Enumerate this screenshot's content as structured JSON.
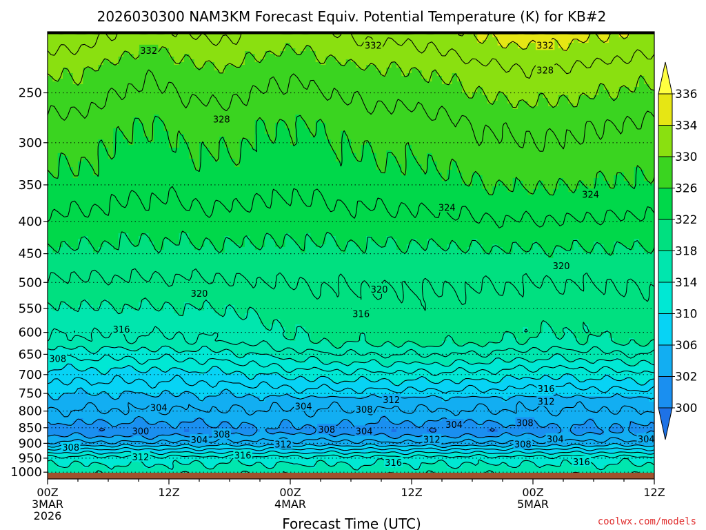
{
  "chart_data": {
    "type": "heatmap",
    "title": "2026030300 NAM3KM Forecast Equiv. Potential Temperature (K) for KB#2",
    "xlabel": "Forecast Time (UTC)",
    "ylabel": "",
    "x_ticks": [
      {
        "hour": 0,
        "lines": [
          "00Z",
          "3MAR",
          "2026"
        ]
      },
      {
        "hour": 12,
        "lines": [
          "12Z"
        ]
      },
      {
        "hour": 24,
        "lines": [
          "00Z",
          "4MAR"
        ]
      },
      {
        "hour": 36,
        "lines": [
          "12Z"
        ]
      },
      {
        "hour": 48,
        "lines": [
          "00Z",
          "5MAR"
        ]
      },
      {
        "hour": 60,
        "lines": [
          "12Z"
        ]
      }
    ],
    "xlim": [
      0,
      60
    ],
    "y_ticks": [
      250,
      300,
      350,
      400,
      450,
      500,
      550,
      600,
      650,
      700,
      750,
      800,
      850,
      900,
      950,
      1000
    ],
    "ylim": [
      200,
      1025
    ],
    "y_scale": "log",
    "y_inverted": true,
    "colorbar": {
      "levels": [
        300,
        302,
        306,
        310,
        314,
        318,
        322,
        326,
        330,
        334,
        336
      ],
      "labels": [
        "300",
        "302",
        "306",
        "310",
        "314",
        "318",
        "322",
        "326",
        "330",
        "334",
        "336"
      ],
      "colors": [
        "#1e72e6",
        "#1a8ff0",
        "#12aef2",
        "#07d3f5",
        "#00e8d4",
        "#00e6ae",
        "#00e080",
        "#00d84a",
        "#3ad420",
        "#8ae010",
        "#e6e614",
        "#ffff40"
      ]
    },
    "contour_labels": [
      {
        "text": "332",
        "hour": 10.0,
        "p": 214
      },
      {
        "text": "332",
        "hour": 32.2,
        "p": 210
      },
      {
        "text": "332",
        "hour": 49.2,
        "p": 210
      },
      {
        "text": "328",
        "hour": 49.2,
        "p": 230
      },
      {
        "text": "328",
        "hour": 17.2,
        "p": 275
      },
      {
        "text": "324",
        "hour": 39.5,
        "p": 380
      },
      {
        "text": "324",
        "hour": 53.7,
        "p": 362
      },
      {
        "text": "320",
        "hour": 15.0,
        "p": 520
      },
      {
        "text": "320",
        "hour": 32.8,
        "p": 512
      },
      {
        "text": "320",
        "hour": 50.8,
        "p": 470
      },
      {
        "text": "316",
        "hour": 7.3,
        "p": 593
      },
      {
        "text": "316",
        "hour": 31.0,
        "p": 560
      },
      {
        "text": "308",
        "hour": 1.0,
        "p": 660
      },
      {
        "text": "316",
        "hour": 49.3,
        "p": 737
      },
      {
        "text": "312",
        "hour": 49.3,
        "p": 772
      },
      {
        "text": "312",
        "hour": 34.0,
        "p": 767
      },
      {
        "text": "304",
        "hour": 11.0,
        "p": 790
      },
      {
        "text": "304",
        "hour": 25.3,
        "p": 786
      },
      {
        "text": "308",
        "hour": 31.3,
        "p": 795
      },
      {
        "text": "304",
        "hour": 40.2,
        "p": 840
      },
      {
        "text": "308",
        "hour": 47.2,
        "p": 835
      },
      {
        "text": "300",
        "hour": 9.2,
        "p": 860
      },
      {
        "text": "308",
        "hour": 17.2,
        "p": 870
      },
      {
        "text": "304",
        "hour": 15.0,
        "p": 888
      },
      {
        "text": "308",
        "hour": 27.6,
        "p": 855
      },
      {
        "text": "304",
        "hour": 31.3,
        "p": 860
      },
      {
        "text": "312",
        "hour": 38.0,
        "p": 887
      },
      {
        "text": "312",
        "hour": 23.3,
        "p": 903
      },
      {
        "text": "308",
        "hour": 2.3,
        "p": 913
      },
      {
        "text": "312",
        "hour": 9.2,
        "p": 945
      },
      {
        "text": "316",
        "hour": 19.3,
        "p": 940
      },
      {
        "text": "308",
        "hour": 47.0,
        "p": 903
      },
      {
        "text": "304",
        "hour": 50.2,
        "p": 885
      },
      {
        "text": "304",
        "hour": 59.2,
        "p": 885
      },
      {
        "text": "316",
        "hour": 34.2,
        "p": 965
      },
      {
        "text": "316",
        "hour": 52.8,
        "p": 962
      }
    ]
  },
  "credit": "coolwx.com/models"
}
